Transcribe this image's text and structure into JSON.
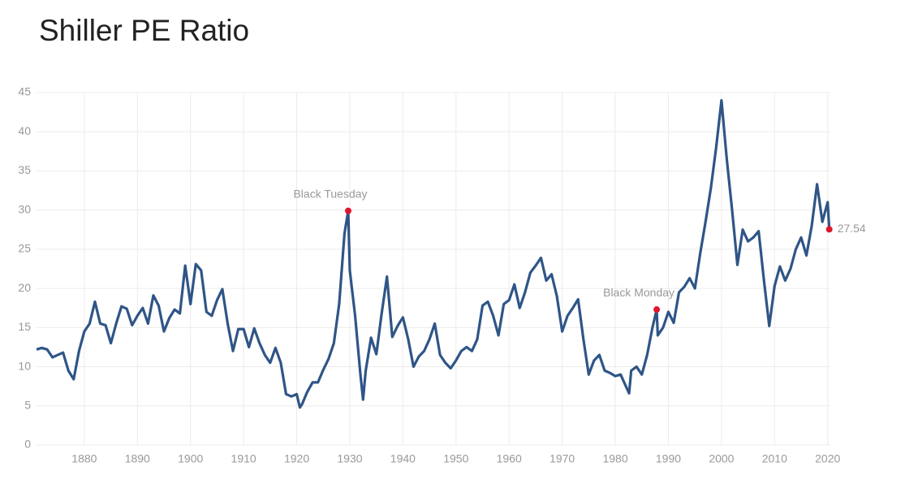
{
  "chart_data": {
    "type": "line",
    "title": "Shiller PE Ratio",
    "x": [
      1871,
      1872,
      1873,
      1874,
      1875,
      1876,
      1877,
      1878,
      1879,
      1880,
      1881,
      1882,
      1883,
      1884,
      1885,
      1886,
      1887,
      1888,
      1889,
      1890,
      1891,
      1892,
      1893,
      1894,
      1895,
      1896,
      1897,
      1898,
      1899,
      1900,
      1901,
      1902,
      1903,
      1904,
      1905,
      1906,
      1907,
      1908,
      1909,
      1910,
      1911,
      1912,
      1913,
      1914,
      1915,
      1916,
      1917,
      1918,
      1919,
      1920,
      1920.6,
      1921,
      1922,
      1923,
      1924,
      1925,
      1926,
      1927,
      1928,
      1929,
      1929.7,
      1930,
      1931,
      1932,
      1932.5,
      1933,
      1934,
      1935,
      1936,
      1937,
      1938,
      1939,
      1940,
      1941,
      1942,
      1943,
      1944,
      1945,
      1946,
      1947,
      1948,
      1949,
      1950,
      1951,
      1952,
      1953,
      1954,
      1955,
      1956,
      1957,
      1958,
      1959,
      1960,
      1961,
      1962,
      1963,
      1964,
      1965,
      1966,
      1967,
      1968,
      1969,
      1970,
      1971,
      1972,
      1973,
      1974,
      1975,
      1976,
      1977,
      1978,
      1979,
      1980,
      1981,
      1982,
      1982.6,
      1983,
      1984,
      1985,
      1986,
      1987,
      1987.8,
      1988,
      1989,
      1990,
      1991,
      1992,
      1993,
      1994,
      1995,
      1996,
      1997,
      1998,
      1999,
      2000,
      2001,
      2002,
      2003,
      2004,
      2005,
      2006,
      2007,
      2008,
      2009,
      2010,
      2011,
      2012,
      2013,
      2014,
      2015,
      2016,
      2017,
      2018,
      2019,
      2020,
      2020.3
    ],
    "series": [
      {
        "name": "Shiller PE",
        "color": "#2f5587",
        "values": [
          12.2,
          12.4,
          12.2,
          11.2,
          11.5,
          11.8,
          9.5,
          8.4,
          12.0,
          14.5,
          15.5,
          18.3,
          15.5,
          15.3,
          13.0,
          15.5,
          17.7,
          17.4,
          15.3,
          16.5,
          17.5,
          15.5,
          19.1,
          17.8,
          14.5,
          16.2,
          17.3,
          16.8,
          22.9,
          18.0,
          23.1,
          22.3,
          17.0,
          16.5,
          18.5,
          19.9,
          15.5,
          12.0,
          14.8,
          14.8,
          12.5,
          14.9,
          13.0,
          11.5,
          10.5,
          12.4,
          10.5,
          6.5,
          6.2,
          6.5,
          4.8,
          5.2,
          6.8,
          8.0,
          8.0,
          9.6,
          11.0,
          13.0,
          18.0,
          27.0,
          29.9,
          22.3,
          16.5,
          9.0,
          5.8,
          9.5,
          13.7,
          11.6,
          16.8,
          21.5,
          13.8,
          15.2,
          16.3,
          13.5,
          10.0,
          11.3,
          12.0,
          13.5,
          15.5,
          11.5,
          10.5,
          9.8,
          10.8,
          12.0,
          12.5,
          12.0,
          13.5,
          17.8,
          18.3,
          16.5,
          14.0,
          18.0,
          18.5,
          20.5,
          17.5,
          19.5,
          22.0,
          22.9,
          23.9,
          21.0,
          21.8,
          19.0,
          14.5,
          16.5,
          17.5,
          18.6,
          13.5,
          9.0,
          10.8,
          11.5,
          9.5,
          9.2,
          8.8,
          9.0,
          7.5,
          6.6,
          9.5,
          10.0,
          9.0,
          11.5,
          15.0,
          17.3,
          14.0,
          15.0,
          17.0,
          15.6,
          19.5,
          20.2,
          21.3,
          20.0,
          24.5,
          28.5,
          32.8,
          38.0,
          44.0,
          36.5,
          30.0,
          23.0,
          27.5,
          26.0,
          26.5,
          27.3,
          21.0,
          15.2,
          20.3,
          22.8,
          21.0,
          22.5,
          25.0,
          26.5,
          24.2,
          28.0,
          33.3,
          28.5,
          31.0,
          27.54
        ]
      }
    ],
    "annotations": [
      {
        "text": "Black Tuesday",
        "x": 1929.7,
        "y": 29.9
      },
      {
        "text": "Black Monday",
        "x": 1987.8,
        "y": 17.3
      },
      {
        "x": 2020.3,
        "y": 27.54
      }
    ],
    "annotation_color": "#e0162b",
    "xlim": [
      1871,
      2020.5
    ],
    "ylim": [
      0,
      45
    ],
    "xticks": [
      1880,
      1890,
      1900,
      1910,
      1920,
      1930,
      1940,
      1950,
      1960,
      1970,
      1980,
      1990,
      2000,
      2010,
      2020
    ],
    "yticks": [
      0,
      5,
      10,
      15,
      20,
      25,
      30,
      35,
      40,
      45
    ],
    "grid": true
  }
}
